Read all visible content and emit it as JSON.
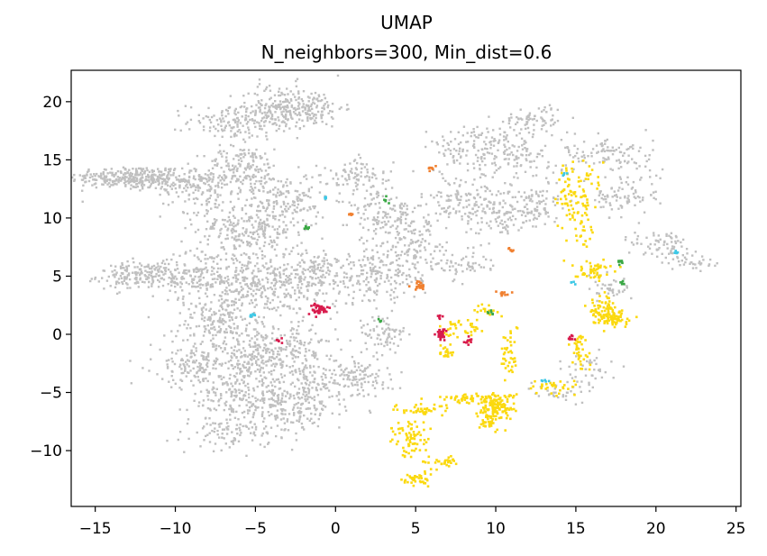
{
  "chart_data": {
    "type": "scatter",
    "title": "UMAP",
    "subtitle": "N_neighbors=300, Min_dist=0.6",
    "xlabel": "",
    "ylabel": "",
    "xlim": [
      -16.5,
      25.3
    ],
    "ylim": [
      -14.8,
      22.7
    ],
    "x_ticks": [
      -15,
      -10,
      -5,
      0,
      5,
      10,
      15,
      20,
      25
    ],
    "y_ticks": [
      -10,
      -5,
      0,
      5,
      10,
      15,
      20
    ],
    "grid": false,
    "legend": "none",
    "colors": {
      "background_points": "#c0c0c0",
      "highlight": "#fbd90f",
      "red": "#d81b4c",
      "orange": "#f08030",
      "green": "#3aa845",
      "cyan": "#3ec8e6"
    },
    "series": [
      {
        "color_key": "background_points",
        "clusters": [
          {
            "x": -13,
            "y": 13.5,
            "sx": 1.8,
            "sy": 0.5,
            "n": 220
          },
          {
            "x": -11,
            "y": 13.3,
            "sx": 1.6,
            "sy": 0.4,
            "n": 140
          },
          {
            "x": -12.5,
            "y": 5,
            "sx": 1.2,
            "sy": 0.6,
            "n": 150
          },
          {
            "x": -10,
            "y": 5,
            "sx": 0.8,
            "sy": 0.5,
            "n": 60
          },
          {
            "x": -6,
            "y": 18.3,
            "sx": 1.6,
            "sy": 0.8,
            "n": 160
          },
          {
            "x": -3.5,
            "y": 19.5,
            "sx": 1.2,
            "sy": 1.0,
            "n": 140
          },
          {
            "x": -1.5,
            "y": 19.5,
            "sx": 1.0,
            "sy": 0.8,
            "n": 110
          },
          {
            "x": -5.8,
            "y": 14.2,
            "sx": 1.2,
            "sy": 1.0,
            "n": 160
          },
          {
            "x": -8.5,
            "y": 12.5,
            "sx": 1.2,
            "sy": 1.0,
            "n": 110
          },
          {
            "x": -5.5,
            "y": 9,
            "sx": 1.6,
            "sy": 1.4,
            "n": 260
          },
          {
            "x": -3,
            "y": 11.5,
            "sx": 1.2,
            "sy": 1.2,
            "n": 150
          },
          {
            "x": -8,
            "y": 5,
            "sx": 1.4,
            "sy": 1.2,
            "n": 180
          },
          {
            "x": -4.5,
            "y": 4,
            "sx": 1.4,
            "sy": 1.5,
            "n": 230
          },
          {
            "x": -1.5,
            "y": 5,
            "sx": 1.4,
            "sy": 1.2,
            "n": 180
          },
          {
            "x": -7.5,
            "y": 1,
            "sx": 1.3,
            "sy": 1.0,
            "n": 150
          },
          {
            "x": -8.5,
            "y": -2.5,
            "sx": 1.4,
            "sy": 1.0,
            "n": 160
          },
          {
            "x": -5,
            "y": -2,
            "sx": 1.4,
            "sy": 1.2,
            "n": 190
          },
          {
            "x": -2.5,
            "y": -1.5,
            "sx": 1.2,
            "sy": 1.0,
            "n": 130
          },
          {
            "x": -6,
            "y": -5.5,
            "sx": 1.6,
            "sy": 1.0,
            "n": 180
          },
          {
            "x": -3,
            "y": -6.5,
            "sx": 1.4,
            "sy": 1.0,
            "n": 150
          },
          {
            "x": -6.5,
            "y": -8.5,
            "sx": 1.2,
            "sy": 0.7,
            "n": 90
          },
          {
            "x": -1,
            "y": -4.5,
            "sx": 1.2,
            "sy": 1.0,
            "n": 110
          },
          {
            "x": 1.5,
            "y": -3.5,
            "sx": 1.0,
            "sy": 1.0,
            "n": 100
          },
          {
            "x": 1.5,
            "y": 13.5,
            "sx": 1.0,
            "sy": 0.8,
            "n": 90
          },
          {
            "x": 3.5,
            "y": 10,
            "sx": 1.2,
            "sy": 1.2,
            "n": 150
          },
          {
            "x": 2.5,
            "y": 5,
            "sx": 1.4,
            "sy": 1.2,
            "n": 170
          },
          {
            "x": 5,
            "y": 7,
            "sx": 1.0,
            "sy": 1.2,
            "n": 110
          },
          {
            "x": 3,
            "y": 0,
            "sx": 0.8,
            "sy": 0.8,
            "n": 70
          },
          {
            "x": 8.5,
            "y": 16,
            "sx": 1.4,
            "sy": 1.0,
            "n": 110
          },
          {
            "x": 11,
            "y": 15.5,
            "sx": 1.2,
            "sy": 1.0,
            "n": 100
          },
          {
            "x": 12.5,
            "y": 18.5,
            "sx": 1.0,
            "sy": 0.6,
            "n": 70
          },
          {
            "x": 8,
            "y": 11.5,
            "sx": 1.2,
            "sy": 1.0,
            "n": 110
          },
          {
            "x": 10,
            "y": 10.5,
            "sx": 1.0,
            "sy": 1.0,
            "n": 90
          },
          {
            "x": 12.5,
            "y": 11,
            "sx": 1.0,
            "sy": 1.0,
            "n": 90
          },
          {
            "x": 8,
            "y": 6,
            "sx": 0.8,
            "sy": 0.6,
            "n": 50
          },
          {
            "x": 17,
            "y": 15.5,
            "sx": 1.4,
            "sy": 0.8,
            "n": 110
          },
          {
            "x": 18,
            "y": 12,
            "sx": 1.2,
            "sy": 1.0,
            "n": 90
          },
          {
            "x": 20.5,
            "y": 7.5,
            "sx": 1.0,
            "sy": 0.8,
            "n": 70
          },
          {
            "x": 22.5,
            "y": 6.2,
            "sx": 0.6,
            "sy": 0.4,
            "n": 30
          },
          {
            "x": 17,
            "y": 4,
            "sx": 0.8,
            "sy": 0.6,
            "n": 40
          },
          {
            "x": 16,
            "y": -3,
            "sx": 0.8,
            "sy": 0.8,
            "n": 40
          },
          {
            "x": 14,
            "y": -5,
            "sx": 0.8,
            "sy": 0.6,
            "n": 30
          }
        ]
      },
      {
        "color_key": "highlight",
        "clusters": [
          {
            "x": 14.5,
            "y": 12,
            "sx": 0.35,
            "sy": 1.6,
            "n": 60
          },
          {
            "x": 15.5,
            "y": 10,
            "sx": 0.25,
            "sy": 1.3,
            "n": 40
          },
          {
            "x": 16,
            "y": 5.5,
            "sx": 0.6,
            "sy": 0.4,
            "n": 50
          },
          {
            "x": 17.2,
            "y": 1.5,
            "sx": 0.6,
            "sy": 0.4,
            "n": 90
          },
          {
            "x": 16.5,
            "y": 2.5,
            "sx": 0.4,
            "sy": 0.5,
            "n": 40
          },
          {
            "x": 15.2,
            "y": -1.5,
            "sx": 0.3,
            "sy": 0.9,
            "n": 40
          },
          {
            "x": 13.5,
            "y": -4.5,
            "sx": 0.8,
            "sy": 0.4,
            "n": 30
          },
          {
            "x": 10,
            "y": -6.2,
            "sx": 0.6,
            "sy": 0.6,
            "n": 140
          },
          {
            "x": 9.5,
            "y": -7.5,
            "sx": 0.4,
            "sy": 0.4,
            "n": 30
          },
          {
            "x": 8,
            "y": -5.5,
            "sx": 0.9,
            "sy": 0.2,
            "n": 40
          },
          {
            "x": 5.5,
            "y": -6.5,
            "sx": 1.0,
            "sy": 0.25,
            "n": 40
          },
          {
            "x": 4.7,
            "y": -9,
            "sx": 0.6,
            "sy": 0.8,
            "n": 70
          },
          {
            "x": 6.5,
            "y": -11,
            "sx": 0.6,
            "sy": 0.3,
            "n": 30
          },
          {
            "x": 5,
            "y": -12.5,
            "sx": 0.4,
            "sy": 0.3,
            "n": 40
          },
          {
            "x": 10.8,
            "y": -1.5,
            "sx": 0.3,
            "sy": 1.2,
            "n": 40
          },
          {
            "x": 8,
            "y": 0.5,
            "sx": 0.7,
            "sy": 0.5,
            "n": 40
          },
          {
            "x": 7,
            "y": -1.5,
            "sx": 0.3,
            "sy": 0.4,
            "n": 20
          },
          {
            "x": 9.5,
            "y": 2,
            "sx": 0.4,
            "sy": 0.3,
            "n": 15
          },
          {
            "x": 16,
            "y": 13.5,
            "sx": 0.3,
            "sy": 0.6,
            "n": 15
          }
        ]
      },
      {
        "color_key": "red",
        "clusters": [
          {
            "x": -1,
            "y": 2.2,
            "sx": 0.3,
            "sy": 0.25,
            "n": 40
          },
          {
            "x": 6.6,
            "y": 0,
            "sx": 0.2,
            "sy": 0.3,
            "n": 30
          },
          {
            "x": 8.3,
            "y": -0.6,
            "sx": 0.15,
            "sy": 0.15,
            "n": 10
          },
          {
            "x": 14.7,
            "y": -0.3,
            "sx": 0.15,
            "sy": 0.15,
            "n": 8
          },
          {
            "x": -3.5,
            "y": -0.6,
            "sx": 0.1,
            "sy": 0.15,
            "n": 6
          },
          {
            "x": 6.5,
            "y": 1.5,
            "sx": 0.1,
            "sy": 0.2,
            "n": 5
          }
        ]
      },
      {
        "color_key": "orange",
        "clusters": [
          {
            "x": 5.2,
            "y": 4.2,
            "sx": 0.2,
            "sy": 0.2,
            "n": 20
          },
          {
            "x": 10.5,
            "y": 3.5,
            "sx": 0.2,
            "sy": 0.1,
            "n": 10
          },
          {
            "x": 1,
            "y": 10.3,
            "sx": 0.1,
            "sy": 0.1,
            "n": 6
          },
          {
            "x": 11,
            "y": 7.2,
            "sx": 0.1,
            "sy": 0.1,
            "n": 6
          },
          {
            "x": 6,
            "y": 14.3,
            "sx": 0.15,
            "sy": 0.1,
            "n": 8
          }
        ]
      },
      {
        "color_key": "green",
        "clusters": [
          {
            "x": -1.8,
            "y": 9.2,
            "sx": 0.1,
            "sy": 0.1,
            "n": 8
          },
          {
            "x": 3.2,
            "y": 11.5,
            "sx": 0.1,
            "sy": 0.1,
            "n": 5
          },
          {
            "x": 9.7,
            "y": 1.8,
            "sx": 0.1,
            "sy": 0.1,
            "n": 6
          },
          {
            "x": 17.8,
            "y": 6.2,
            "sx": 0.1,
            "sy": 0.1,
            "n": 8
          },
          {
            "x": 17.9,
            "y": 4.4,
            "sx": 0.1,
            "sy": 0.1,
            "n": 5
          },
          {
            "x": 2.8,
            "y": 1.2,
            "sx": 0.08,
            "sy": 0.08,
            "n": 4
          }
        ]
      },
      {
        "color_key": "cyan",
        "clusters": [
          {
            "x": -5.2,
            "y": 1.6,
            "sx": 0.1,
            "sy": 0.1,
            "n": 8
          },
          {
            "x": -0.6,
            "y": 11.7,
            "sx": 0.1,
            "sy": 0.08,
            "n": 5
          },
          {
            "x": 13,
            "y": -4,
            "sx": 0.1,
            "sy": 0.08,
            "n": 5
          },
          {
            "x": 21.3,
            "y": 7,
            "sx": 0.1,
            "sy": 0.1,
            "n": 6
          },
          {
            "x": 14.2,
            "y": 13.8,
            "sx": 0.08,
            "sy": 0.08,
            "n": 4
          },
          {
            "x": 14.8,
            "y": 4.5,
            "sx": 0.08,
            "sy": 0.08,
            "n": 4
          }
        ]
      }
    ]
  }
}
